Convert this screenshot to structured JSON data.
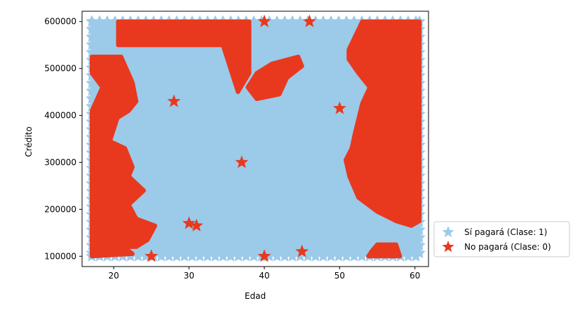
{
  "chart_data": {
    "type": "scatter",
    "title": "",
    "xlabel": "Edad",
    "ylabel": "Crédito",
    "xlim": [
      15.8,
      61.8
    ],
    "ylim": [
      78000,
      622000
    ],
    "xticks": [
      20,
      30,
      40,
      50,
      60
    ],
    "yticks": [
      100000,
      200000,
      300000,
      400000,
      500000,
      600000
    ],
    "xtick_labels": [
      "20",
      "30",
      "40",
      "50",
      "60"
    ],
    "ytick_labels": [
      "100000",
      "200000",
      "300000",
      "400000",
      "500000",
      "600000"
    ],
    "grid": false,
    "legend_position": "outside-lower-right",
    "marker": "star",
    "series": [
      {
        "name": "Sí pagará (Clase: 1)",
        "color": "#9ccae9"
      },
      {
        "name": "No pagará (Clase: 0)",
        "color": "#e8391f"
      }
    ],
    "decision_region": {
      "background_class": 1,
      "class0_regions": [
        [
          [
            20.6,
            550000
          ],
          [
            34.5,
            550000
          ],
          [
            36.5,
            450000
          ],
          [
            38.0,
            490000
          ],
          [
            38.0,
            600000
          ],
          [
            20.6,
            600000
          ]
        ],
        [
          [
            17.1,
            525000
          ],
          [
            21.0,
            525000
          ],
          [
            22.5,
            470000
          ],
          [
            23.0,
            430000
          ],
          [
            22.0,
            410000
          ],
          [
            20.5,
            395000
          ],
          [
            19.5,
            345000
          ],
          [
            21.5,
            330000
          ],
          [
            22.5,
            290000
          ],
          [
            22.0,
            270000
          ],
          [
            24.0,
            240000
          ],
          [
            22.0,
            210000
          ],
          [
            23.0,
            180000
          ],
          [
            25.5,
            165000
          ],
          [
            24.5,
            135000
          ],
          [
            23.0,
            120000
          ],
          [
            17.1,
            120000
          ],
          [
            17.1,
            150000
          ],
          [
            17.1,
            410000
          ],
          [
            18.5,
            460000
          ],
          [
            17.1,
            490000
          ]
        ],
        [
          [
            17.1,
            145000
          ],
          [
            20.5,
            130000
          ],
          [
            22.5,
            105000
          ],
          [
            17.1,
            100000
          ]
        ],
        [
          [
            37.8,
            460000
          ],
          [
            39.0,
            490000
          ],
          [
            41.0,
            510000
          ],
          [
            44.5,
            525000
          ],
          [
            45.0,
            505000
          ],
          [
            43.0,
            480000
          ],
          [
            42.0,
            445000
          ],
          [
            39.0,
            435000
          ]
        ],
        [
          [
            51.2,
            540000
          ],
          [
            53.0,
            600000
          ],
          [
            60.6,
            600000
          ],
          [
            60.6,
            175000
          ],
          [
            59.5,
            165000
          ],
          [
            57.5,
            175000
          ],
          [
            55.0,
            195000
          ],
          [
            52.5,
            225000
          ],
          [
            51.3,
            270000
          ],
          [
            50.8,
            305000
          ],
          [
            51.6,
            330000
          ],
          [
            52.0,
            360000
          ],
          [
            53.0,
            425000
          ],
          [
            54.0,
            460000
          ],
          [
            52.5,
            490000
          ],
          [
            51.2,
            520000
          ]
        ],
        [
          [
            53.8,
            100000
          ],
          [
            58.0,
            100000
          ],
          [
            57.5,
            125000
          ],
          [
            55.0,
            125000
          ],
          [
            54.3,
            112000
          ]
        ]
      ]
    },
    "points": [
      {
        "x": 25,
        "y": 100000,
        "class": 0
      },
      {
        "x": 28,
        "y": 430000,
        "class": 0
      },
      {
        "x": 30,
        "y": 170000,
        "class": 0
      },
      {
        "x": 31,
        "y": 165000,
        "class": 0
      },
      {
        "x": 37,
        "y": 300000,
        "class": 0
      },
      {
        "x": 40,
        "y": 100000,
        "class": 0
      },
      {
        "x": 40,
        "y": 600000,
        "class": 0
      },
      {
        "x": 45,
        "y": 110000,
        "class": 0
      },
      {
        "x": 46,
        "y": 600000,
        "class": 0
      },
      {
        "x": 50,
        "y": 415000,
        "class": 0
      }
    ]
  }
}
